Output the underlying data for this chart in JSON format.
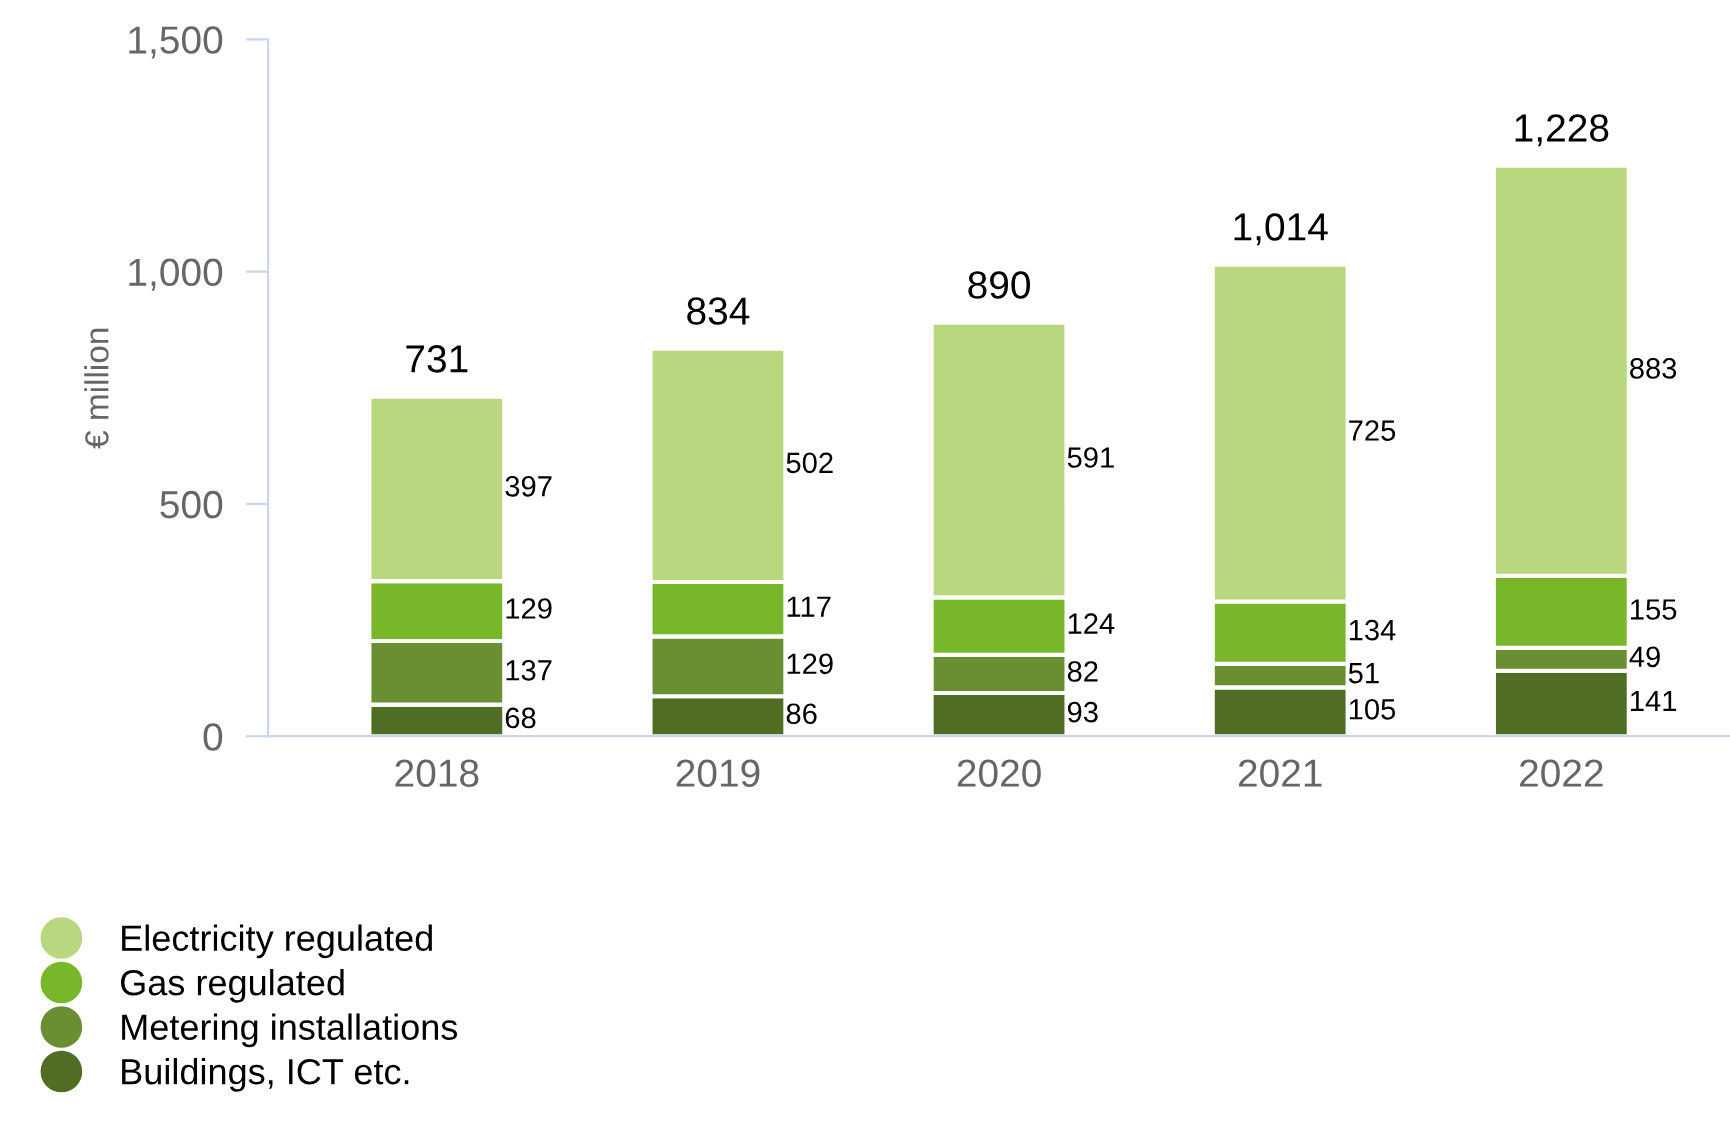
{
  "chart_data": {
    "type": "bar",
    "stacked": true,
    "ylabel": "€ million",
    "categories": [
      "2018",
      "2019",
      "2020",
      "2021",
      "2022"
    ],
    "series": [
      {
        "name": "Buildings, ICT etc.",
        "color": "#4f6e24",
        "values": [
          68,
          86,
          93,
          105,
          141
        ]
      },
      {
        "name": "Metering installations",
        "color": "#6a8f33",
        "values": [
          137,
          129,
          82,
          51,
          49
        ]
      },
      {
        "name": "Gas regulated",
        "color": "#78b72a",
        "values": [
          129,
          117,
          124,
          134,
          155
        ]
      },
      {
        "name": "Electricity regulated",
        "color": "#b9d77e",
        "values": [
          397,
          502,
          591,
          725,
          883
        ]
      }
    ],
    "totals": [
      "731",
      "834",
      "890",
      "1,014",
      "1,228"
    ],
    "ylim": [
      0,
      1500
    ],
    "yticks": [
      0,
      500,
      {
        "value": 1000,
        "label": "1,000"
      },
      {
        "value": 1500,
        "label": "1,500"
      }
    ],
    "data_labels": true,
    "grid": false,
    "legend": "bottom"
  }
}
